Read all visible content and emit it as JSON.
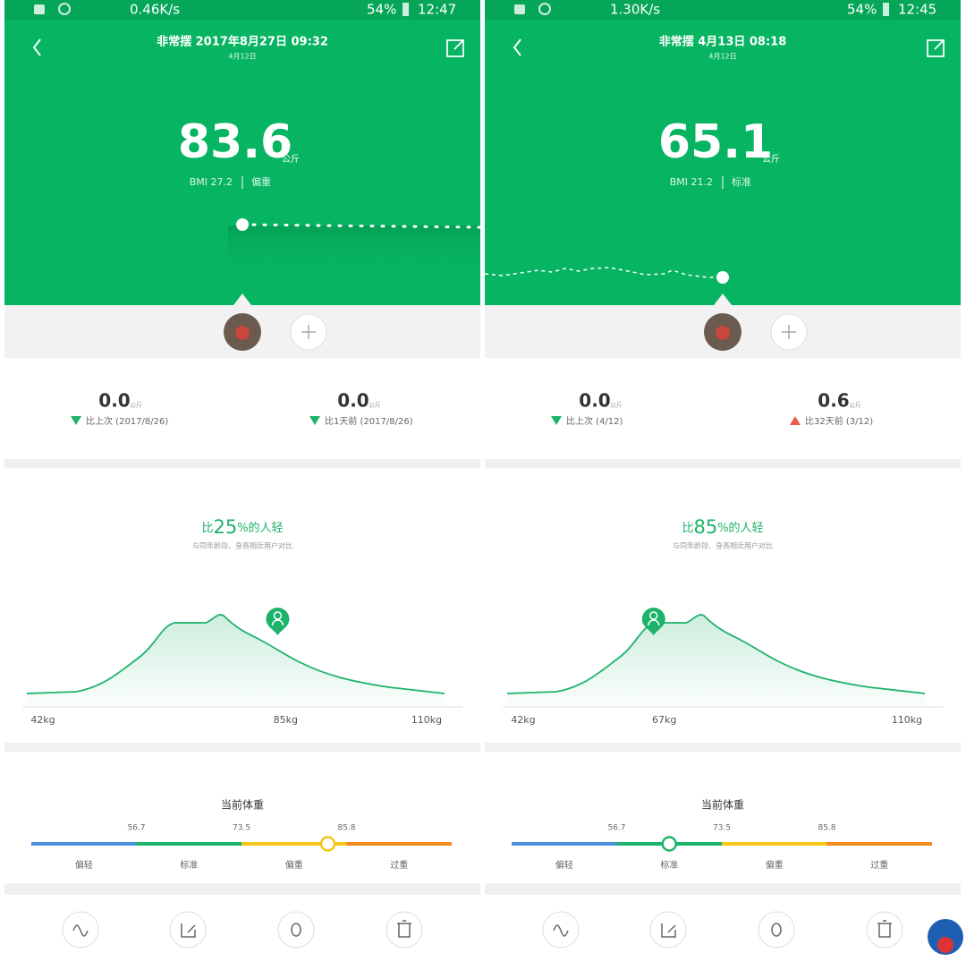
{
  "panels": [
    {
      "status": {
        "speed": "0.46K/s",
        "battery": "54%",
        "time": "12:47"
      },
      "title": "非常摆 2017年8月27日 09:32",
      "subtitle": "4月12日",
      "weight": "83.6",
      "unit": "公斤",
      "bmi": "BMI 27.2",
      "bmi_status": "偏重",
      "trend_side": "right",
      "comparisons": [
        {
          "value": "0.0",
          "unit": "公斤",
          "label": "比上次 (2017/8/26)",
          "direction": "down"
        },
        {
          "value": "0.0",
          "unit": "公斤",
          "label": "比1天前 (2017/8/26)",
          "direction": "down"
        }
      ],
      "percentile_prefix": "比",
      "percentile": 25,
      "percentile_suffix": "%的人轻",
      "percentile_note": "与同年龄段、身高相近用户对比",
      "distribution_axis": [
        {
          "value": 42,
          "label": "42kg"
        },
        {
          "value": 85,
          "label": "85kg"
        },
        {
          "value": 110,
          "label": "110kg"
        }
      ],
      "current_title": "当前体重",
      "current_value": 83.6,
      "thresholds": [
        56.7,
        73.5,
        85.8
      ],
      "categories": [
        "偏轻",
        "标准",
        "偏重",
        "过重"
      ]
    },
    {
      "status": {
        "speed": "1.30K/s",
        "battery": "54%",
        "time": "12:45"
      },
      "title": "非常摆 4月13日 08:18",
      "subtitle": "4月12日",
      "weight": "65.1",
      "unit": "公斤",
      "bmi": "BMI 21.2",
      "bmi_status": "标准",
      "trend_side": "left",
      "comparisons": [
        {
          "value": "0.0",
          "unit": "公斤",
          "label": "比上次 (4/12)",
          "direction": "down"
        },
        {
          "value": "0.6",
          "unit": "公斤",
          "label": "比32天前 (3/12)",
          "direction": "up"
        }
      ],
      "percentile_prefix": "比",
      "percentile": 85,
      "percentile_suffix": "%的人轻",
      "percentile_note": "与同年龄段、身高相近用户对比",
      "distribution_axis": [
        {
          "value": 42,
          "label": "42kg"
        },
        {
          "value": 67,
          "label": "67kg"
        },
        {
          "value": 110,
          "label": "110kg"
        }
      ],
      "current_title": "当前体重",
      "current_value": 65.1,
      "thresholds": [
        56.7,
        73.5,
        85.8
      ],
      "categories": [
        "偏轻",
        "标准",
        "偏重",
        "过重"
      ]
    }
  ]
}
